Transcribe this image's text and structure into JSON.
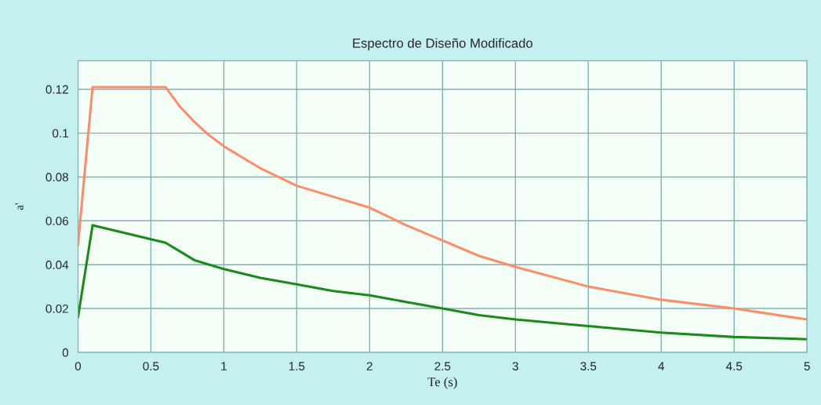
{
  "chart_data": {
    "type": "line",
    "title": "Espectro de Diseño Modificado",
    "xlabel": "Te (s)",
    "ylabel": "a'",
    "x": [
      0,
      0.1,
      0.6,
      0.7,
      0.8,
      0.9,
      1,
      1.25,
      1.5,
      1.75,
      2,
      2.25,
      2.5,
      2.75,
      3,
      3.5,
      4,
      4.5,
      5
    ],
    "series": [
      {
        "color": "#ff8c69",
        "values": [
          0.049,
          0.121,
          0.121,
          0.112,
          0.105,
          0.099,
          0.094,
          0.084,
          0.076,
          0.071,
          0.066,
          0.058,
          0.051,
          0.044,
          0.039,
          0.03,
          0.024,
          0.02,
          0.015
        ]
      },
      {
        "color": "#1a8a1a",
        "values": [
          0.016,
          0.058,
          0.05,
          0.046,
          0.042,
          0.04,
          0.038,
          0.034,
          0.031,
          0.028,
          0.026,
          0.023,
          0.02,
          0.017,
          0.015,
          0.012,
          0.009,
          0.007,
          0.006
        ]
      }
    ],
    "xlim": [
      0,
      5
    ],
    "ylim": [
      0,
      0.133
    ],
    "xticks": [
      0,
      0.5,
      1,
      1.5,
      2,
      2.5,
      3,
      3.5,
      4,
      4.5,
      5
    ],
    "yticks": [
      0,
      0.02,
      0.04,
      0.06,
      0.08,
      0.1,
      0.12
    ],
    "grid": true,
    "legend": false,
    "marker": "none",
    "line_style": "solid"
  }
}
